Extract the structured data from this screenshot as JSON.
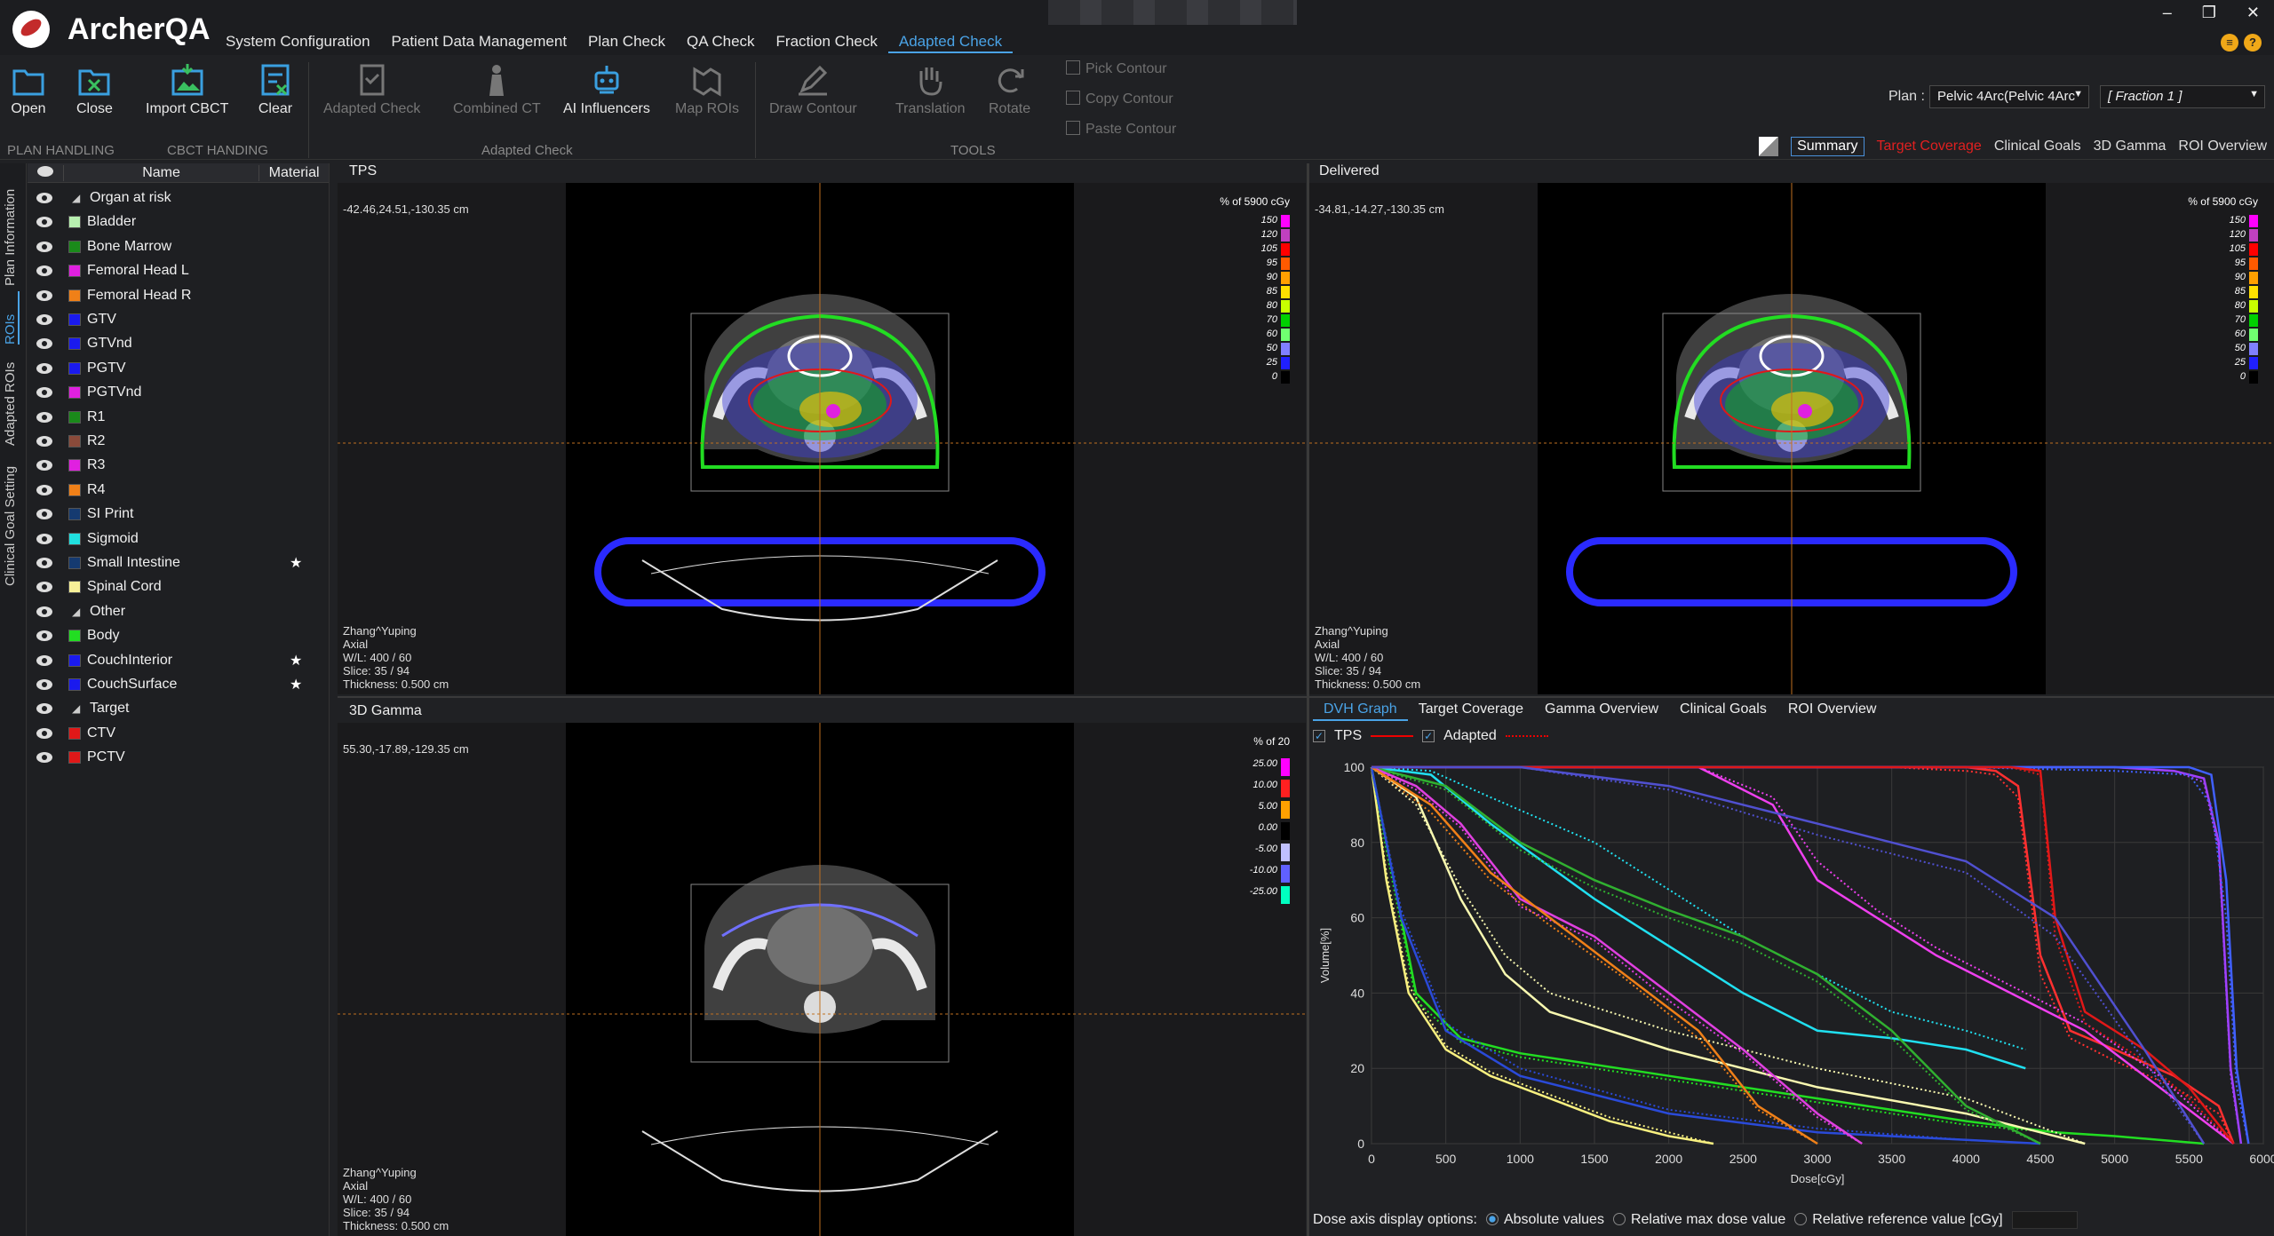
{
  "app": {
    "name": "ArcherQA"
  },
  "menu": [
    {
      "label": "System Configuration",
      "active": false
    },
    {
      "label": "Patient Data Management",
      "active": false
    },
    {
      "label": "Plan Check",
      "active": false
    },
    {
      "label": "QA Check",
      "active": false
    },
    {
      "label": "Fraction Check",
      "active": false
    },
    {
      "label": "Adapted Check",
      "active": true
    }
  ],
  "toolbar": {
    "open": "Open",
    "close": "Close",
    "import_cbct": "Import CBCT",
    "clear": "Clear",
    "adapted_check": "Adapted Check",
    "combined_ct": "Combined CT",
    "ai_influencers": "AI Influencers",
    "map_rois": "Map ROIs",
    "draw_contour": "Draw Contour",
    "translation": "Translation",
    "rotate": "Rotate",
    "pick_contour": "Pick Contour",
    "copy_contour": "Copy Contour",
    "paste_contour": "Paste Contour",
    "groups": {
      "plan_handling": "PLAN HANDLING",
      "cbct_handing": "CBCT HANDING",
      "adapted_check": "Adapted Check",
      "tools": "TOOLS"
    }
  },
  "plan": {
    "label": "Plan :",
    "value": "Pelvic 4Arc(Pelvic 4Arc",
    "fraction": "[ Fraction 1 ]"
  },
  "view_tabs": [
    "Summary",
    "Target Coverage",
    "Clinical Goals",
    "3D Gamma",
    "ROI Overview"
  ],
  "side_tabs": [
    "Plan Information",
    "ROIs",
    "Adapted ROIs",
    "Clinical Goal Setting"
  ],
  "roi_table": {
    "headers": {
      "name": "Name",
      "material": "Material"
    },
    "rows": [
      {
        "name": "Organ at risk",
        "group": true
      },
      {
        "name": "Bladder",
        "color": "#b8f0b0"
      },
      {
        "name": "Bone Marrow",
        "color": "#1a8a1a"
      },
      {
        "name": "Femoral Head L",
        "color": "#e020e0"
      },
      {
        "name": "Femoral Head R",
        "color": "#f08018"
      },
      {
        "name": "GTV",
        "color": "#1a1aee"
      },
      {
        "name": "GTVnd",
        "color": "#1a1aee"
      },
      {
        "name": "PGTV",
        "color": "#1a1aee"
      },
      {
        "name": "PGTVnd",
        "color": "#e020e0"
      },
      {
        "name": "R1",
        "color": "#1a8a1a"
      },
      {
        "name": "R2",
        "color": "#8a4a3a"
      },
      {
        "name": "R3",
        "color": "#e020e0"
      },
      {
        "name": "R4",
        "color": "#f08018"
      },
      {
        "name": "SI Print",
        "color": "#153a70"
      },
      {
        "name": "Sigmoid",
        "color": "#20e0e0"
      },
      {
        "name": "Small Intestine",
        "color": "#153a70",
        "star": "★"
      },
      {
        "name": "Spinal Cord",
        "color": "#f8f098"
      },
      {
        "name": "Other",
        "group": true
      },
      {
        "name": "Body",
        "color": "#22dd22"
      },
      {
        "name": "CouchInterior",
        "color": "#1a1aee",
        "star": "★"
      },
      {
        "name": "CouchSurface",
        "color": "#1a1aee",
        "star": "★"
      },
      {
        "name": "Target",
        "group": true
      },
      {
        "name": "CTV",
        "color": "#e01818"
      },
      {
        "name": "PCTV",
        "color": "#e01818"
      }
    ]
  },
  "viewers": {
    "tps": {
      "title": "TPS",
      "coord": "-42.46,24.51,-130.35  cm",
      "scale_title": "% of 5900 cGy"
    },
    "delivered": {
      "title": "Delivered",
      "coord": "-34.81,-14.27,-130.35  cm",
      "scale_title": "% of 5900 cGy"
    },
    "gamma": {
      "title": "3D Gamma",
      "coord": "55.30,-17.89,-129.35  cm",
      "scale_title": "% of 20"
    },
    "patient": "Zhang^Yuping",
    "orientation": "Axial",
    "wl": "W/L: 400 / 60",
    "slice": "Slice: 35 / 94",
    "thickness": "Thickness: 0.500 cm",
    "dose_scale": [
      {
        "v": "150",
        "c": "#ff00ff"
      },
      {
        "v": "120",
        "c": "#c040c0"
      },
      {
        "v": "105",
        "c": "#ff0000"
      },
      {
        "v": "95",
        "c": "#ff5a00"
      },
      {
        "v": "90",
        "c": "#ffa000"
      },
      {
        "v": "85",
        "c": "#ffe000"
      },
      {
        "v": "80",
        "c": "#c8ff00"
      },
      {
        "v": "70",
        "c": "#00d000"
      },
      {
        "v": "60",
        "c": "#70ff70"
      },
      {
        "v": "50",
        "c": "#8080ff"
      },
      {
        "v": "25",
        "c": "#2020ff"
      },
      {
        "v": "0",
        "c": "#000000"
      }
    ],
    "gamma_scale": [
      {
        "v": "25.00",
        "c": "#ff00ff"
      },
      {
        "v": "10.00",
        "c": "#ff2020"
      },
      {
        "v": "5.00",
        "c": "#ffa000"
      },
      {
        "v": "0.00",
        "c": "#000000"
      },
      {
        "v": "-5.00",
        "c": "#c0c0ff"
      },
      {
        "v": "-10.00",
        "c": "#6060ff"
      },
      {
        "v": "-25.00",
        "c": "#00ffc0"
      }
    ]
  },
  "dvh": {
    "tabs": [
      "DVH Graph",
      "Target Coverage",
      "Gamma Overview",
      "Clinical Goals",
      "ROI Overview"
    ],
    "legend": {
      "tps": "TPS",
      "adapted": "Adapted"
    },
    "dose_options": {
      "label": "Dose axis display options:",
      "abs": "Absolute values",
      "rel_max": "Relative max dose value",
      "rel_ref": "Relative reference value [cGy]"
    }
  },
  "chart_data": {
    "type": "line",
    "title": "",
    "xlabel": "Dose[cGy]",
    "ylabel": "Volume[%]",
    "xlim": [
      0,
      6000
    ],
    "ylim": [
      0,
      100
    ],
    "xticks": [
      0,
      500,
      1000,
      1500,
      2000,
      2500,
      3000,
      3500,
      4000,
      4500,
      5000,
      5500,
      6000
    ],
    "yticks": [
      0,
      20,
      40,
      60,
      80,
      100
    ],
    "grid": true,
    "series": [
      {
        "color": "#f8f080",
        "x": [
          0,
          100,
          250,
          500,
          800,
          1200,
          1600,
          2000,
          2300
        ],
        "tps": [
          100,
          70,
          40,
          25,
          18,
          12,
          6,
          2,
          0
        ],
        "adapted": [
          100,
          72,
          42,
          26,
          19,
          13,
          7,
          3,
          0
        ]
      },
      {
        "color": "#22dd22",
        "x": [
          0,
          100,
          300,
          600,
          1000,
          2000,
          3000,
          4000,
          4600,
          5000,
          5600
        ],
        "tps": [
          100,
          80,
          40,
          28,
          24,
          18,
          12,
          6,
          3,
          2,
          0
        ],
        "adapted": [
          100,
          78,
          38,
          27,
          23,
          17,
          11,
          5,
          3,
          2,
          0
        ]
      },
      {
        "color": "#2a4ad8",
        "x": [
          0,
          200,
          500,
          1000,
          2000,
          3000,
          4000,
          4500
        ],
        "tps": [
          100,
          60,
          30,
          18,
          8,
          3,
          1,
          0
        ],
        "adapted": [
          100,
          62,
          32,
          20,
          9,
          4,
          1,
          0
        ]
      },
      {
        "color": "#f8f8b0",
        "x": [
          0,
          300,
          600,
          900,
          1200,
          2000,
          3000,
          4000,
          4800
        ],
        "tps": [
          100,
          92,
          65,
          45,
          35,
          25,
          15,
          8,
          0
        ],
        "adapted": [
          100,
          90,
          68,
          50,
          40,
          30,
          20,
          12,
          0
        ]
      },
      {
        "color": "#20e0f0",
        "x": [
          0,
          400,
          800,
          1500,
          2500,
          3000,
          3500,
          4000,
          4400
        ],
        "tps": [
          100,
          98,
          85,
          65,
          40,
          30,
          28,
          25,
          20
        ],
        "adapted": [
          100,
          99,
          92,
          80,
          55,
          45,
          35,
          30,
          25
        ]
      },
      {
        "color": "#30b030",
        "x": [
          0,
          500,
          1000,
          1500,
          2000,
          2500,
          3000,
          3500,
          4000,
          4500
        ],
        "tps": [
          100,
          95,
          80,
          70,
          62,
          55,
          45,
          30,
          10,
          0
        ],
        "adapted": [
          100,
          94,
          78,
          68,
          60,
          53,
          43,
          28,
          9,
          0
        ]
      },
      {
        "color": "#e040e0",
        "x": [
          0,
          300,
          600,
          1000,
          1500,
          2000,
          2500,
          3000,
          3300
        ],
        "tps": [
          100,
          95,
          85,
          65,
          55,
          40,
          25,
          8,
          0
        ],
        "adapted": [
          100,
          94,
          84,
          63,
          54,
          38,
          24,
          7,
          0
        ]
      },
      {
        "color": "#f08018",
        "x": [
          0,
          400,
          800,
          1200,
          1700,
          2200,
          2600,
          3000
        ],
        "tps": [
          100,
          90,
          72,
          60,
          45,
          30,
          10,
          0
        ],
        "adapted": [
          100,
          88,
          70,
          58,
          44,
          28,
          9,
          0
        ]
      },
      {
        "color": "#ff3030",
        "x": [
          0,
          2500,
          3000,
          3500,
          4000,
          4200,
          4350,
          4500,
          4700,
          5000,
          5400,
          5700,
          5800
        ],
        "tps": [
          100,
          100,
          100,
          100,
          100,
          99,
          95,
          50,
          30,
          25,
          18,
          10,
          0
        ],
        "adapted": [
          100,
          100,
          100,
          100,
          99,
          98,
          92,
          45,
          28,
          22,
          15,
          8,
          0
        ]
      },
      {
        "color": "#ee40ee",
        "x": [
          0,
          2200,
          2700,
          3000,
          3400,
          3800,
          4300,
          4800,
          5300,
          5800
        ],
        "tps": [
          100,
          100,
          90,
          70,
          60,
          50,
          40,
          30,
          15,
          0
        ],
        "adapted": [
          100,
          100,
          92,
          75,
          62,
          52,
          42,
          32,
          18,
          0
        ]
      },
      {
        "color": "#a040ff",
        "x": [
          0,
          4000,
          5000,
          5400,
          5600,
          5700,
          5780,
          5850
        ],
        "tps": [
          100,
          100,
          100,
          99,
          97,
          80,
          20,
          0
        ],
        "adapted": [
          100,
          100,
          100,
          99,
          96,
          78,
          18,
          0
        ]
      },
      {
        "color": "#4060ff",
        "x": [
          0,
          4000,
          5000,
          5500,
          5650,
          5750,
          5820,
          5900
        ],
        "tps": [
          100,
          100,
          100,
          100,
          98,
          70,
          20,
          0
        ],
        "adapted": [
          100,
          100,
          99,
          98,
          90,
          60,
          15,
          0
        ]
      },
      {
        "color": "#e01818",
        "x": [
          0,
          4300,
          4500,
          4600,
          4800,
          5200,
          5500,
          5800
        ],
        "tps": [
          100,
          100,
          99,
          60,
          35,
          25,
          15,
          0
        ],
        "adapted": [
          100,
          100,
          98,
          55,
          32,
          22,
          12,
          0
        ]
      },
      {
        "color": "#5050d0",
        "x": [
          0,
          1000,
          2000,
          3000,
          4000,
          4600,
          5200,
          5600
        ],
        "tps": [
          100,
          100,
          95,
          85,
          75,
          60,
          25,
          0
        ],
        "adapted": [
          100,
          100,
          94,
          82,
          72,
          55,
          22,
          0
        ]
      }
    ]
  }
}
